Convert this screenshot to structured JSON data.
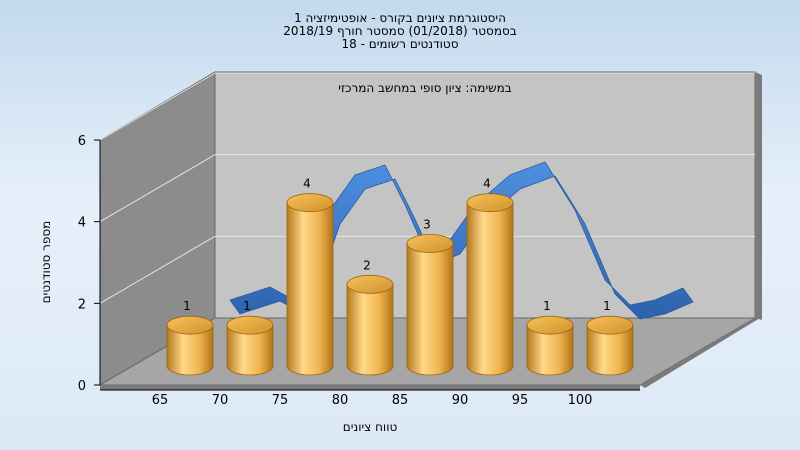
{
  "chart_data": {
    "type": "bar",
    "title_lines": [
      "היסטוגרמת ציונים בקורס - אופטימיזציה 1",
      "בסמסטר  (01/2018)  סמסטר חורף 2018/19",
      "סטודנטים רשומים - 18"
    ],
    "subject_label": "במשימה: ציון סופי במחשב המרכזי",
    "xlabel": "טווח ציונים",
    "ylabel": "מספר סטודנטים",
    "x_ticks": [
      65,
      70,
      75,
      80,
      85,
      90,
      95,
      100
    ],
    "y_ticks": [
      0,
      2,
      4,
      6
    ],
    "ylim": [
      0,
      6
    ],
    "categories": [
      65,
      70,
      75,
      80,
      85,
      90,
      95,
      100
    ],
    "values": [
      1,
      1,
      4,
      2,
      3,
      4,
      1,
      1
    ],
    "value_labels": [
      "1",
      "1",
      "4",
      "2",
      "3",
      "4",
      "1",
      "1"
    ],
    "bar_shape": "cylinder",
    "curve": "smoothed distribution ribbon",
    "colors": {
      "bar_light": "#ffd98a",
      "bar_mid": "#e8a93c",
      "bar_dark": "#b57a1f",
      "ribbon": "#3a78c9",
      "wall_back": "#c4c4c4",
      "wall_left": "#8c8c8c",
      "floor": "#a6a6a6"
    }
  }
}
